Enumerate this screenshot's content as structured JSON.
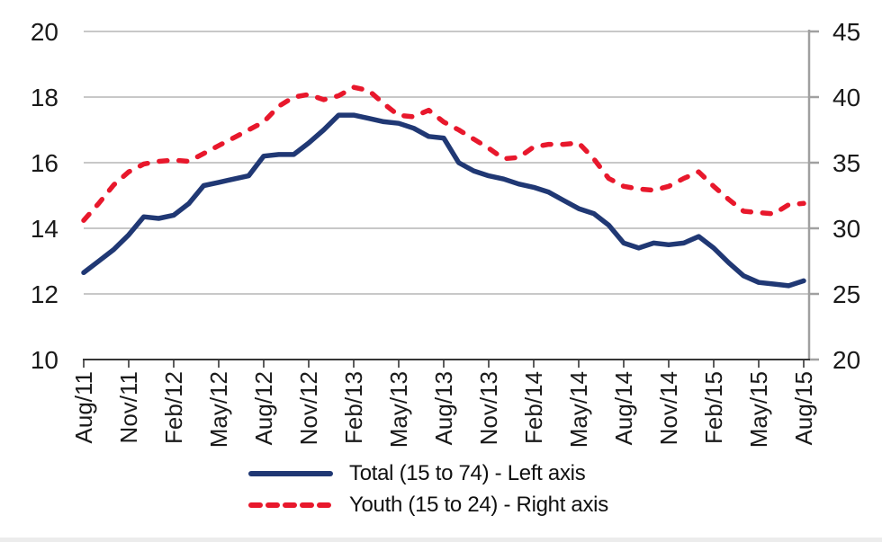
{
  "chart_data": {
    "type": "line",
    "title": "",
    "x": [
      "Aug/11",
      "Sep/11",
      "Oct/11",
      "Nov/11",
      "Dec/11",
      "Jan/12",
      "Feb/12",
      "Mar/12",
      "Apr/12",
      "May/12",
      "Jun/12",
      "Jul/12",
      "Aug/12",
      "Sep/12",
      "Oct/12",
      "Nov/12",
      "Dec/12",
      "Jan/13",
      "Feb/13",
      "Mar/13",
      "Apr/13",
      "May/13",
      "Jun/13",
      "Jul/13",
      "Aug/13",
      "Sep/13",
      "Oct/13",
      "Nov/13",
      "Dec/13",
      "Jan/14",
      "Feb/14",
      "Mar/14",
      "Apr/14",
      "May/14",
      "Jun/14",
      "Jul/14",
      "Aug/14",
      "Sep/14",
      "Oct/14",
      "Nov/14",
      "Dec/14",
      "Jan/15",
      "Feb/15",
      "Mar/15",
      "Apr/15",
      "May/15",
      "Jun/15",
      "Jul/15",
      "Aug/15"
    ],
    "x_tick_labels": [
      "Aug/11",
      "Nov/11",
      "Feb/12",
      "May/12",
      "Aug/12",
      "Nov/12",
      "Feb/13",
      "May/13",
      "Aug/13",
      "Nov/13",
      "Feb/14",
      "May/14",
      "Aug/14",
      "Nov/14",
      "Feb/15",
      "May/15",
      "Aug/15"
    ],
    "series": [
      {
        "name": "Total (15 to 74)",
        "legend_label": "Total (15 to 74) - Left axis",
        "axis": "left",
        "style": "solid",
        "color": "#203874",
        "values": [
          12.65,
          13.0,
          13.35,
          13.8,
          14.35,
          14.3,
          14.4,
          14.75,
          15.3,
          15.4,
          15.5,
          15.6,
          16.2,
          16.25,
          16.25,
          16.6,
          17.0,
          17.45,
          17.45,
          17.35,
          17.25,
          17.2,
          17.05,
          16.8,
          16.75,
          16.0,
          15.75,
          15.6,
          15.5,
          15.35,
          15.25,
          15.1,
          14.85,
          14.6,
          14.45,
          14.1,
          13.55,
          13.4,
          13.55,
          13.5,
          13.55,
          13.75,
          13.4,
          12.95,
          12.55,
          12.35,
          12.3,
          12.25,
          12.4
        ]
      },
      {
        "name": "Youth (15 to 24)",
        "legend_label": "Youth (15 to 24) - Right axis",
        "axis": "right",
        "style": "dashed",
        "color": "#e8182c",
        "values": [
          30.6,
          31.9,
          33.3,
          34.3,
          34.9,
          35.1,
          35.2,
          35.1,
          35.7,
          36.3,
          36.9,
          37.5,
          38.1,
          39.3,
          40.0,
          40.2,
          39.8,
          40.1,
          40.75,
          40.5,
          39.5,
          38.6,
          38.5,
          39.0,
          38.1,
          37.5,
          36.8,
          36.1,
          35.3,
          35.4,
          36.2,
          36.4,
          36.4,
          36.5,
          35.3,
          33.8,
          33.2,
          33.0,
          32.9,
          33.2,
          33.8,
          34.3,
          33.2,
          32.2,
          31.3,
          31.2,
          31.1,
          31.8,
          31.9
        ]
      }
    ],
    "left_axis": {
      "min": 10,
      "max": 20,
      "tick_values": [
        20,
        18,
        16,
        14,
        12,
        10
      ],
      "tick_labels": [
        "20",
        "18",
        "16",
        "14",
        "12",
        "10"
      ]
    },
    "right_axis": {
      "min": 20,
      "max": 45,
      "tick_values": [
        45,
        40,
        35,
        30,
        25,
        20
      ],
      "tick_labels": [
        "45",
        "40",
        "35",
        "30",
        "25",
        "20"
      ]
    },
    "grid": true,
    "legend_position": "bottom",
    "colors": {
      "gridline": "#a6a6a6",
      "right_axis_line": "#a0a0a0",
      "x_axis_line": "#363636",
      "tick_label": "#1a1a1a"
    }
  }
}
